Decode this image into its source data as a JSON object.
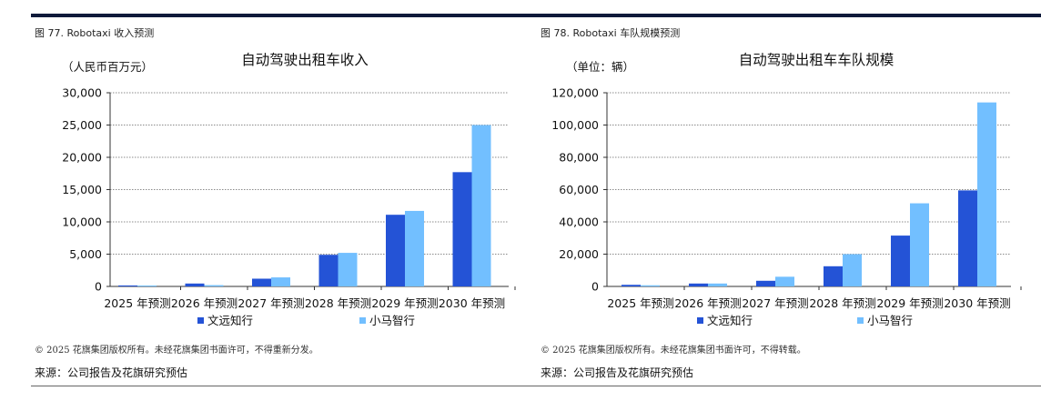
{
  "colors": {
    "series1": "#2453d6",
    "series2": "#72bfff",
    "rule": "#0f1a3a"
  },
  "panels": [
    {
      "caption": "图 77. Robotaxi 收入预测",
      "copyright": "© 2025 花旗集团版权所有。未经花旗集团书面许可，不得重新分发。",
      "source": "来源：公司报告及花旗研究预估"
    },
    {
      "caption": "图 78. Robotaxi 车队规模预测",
      "copyright": "© 2025 花旗集团版权所有。未经花旗集团书面许可，不得转载。",
      "source": "来源：公司报告及花旗研究预估"
    }
  ],
  "chart_data": [
    {
      "type": "bar",
      "title": "自动驾驶出租车收入",
      "ylabel": "（人民币百万元）",
      "xlabel": "",
      "categories": [
        "2025 年预测",
        "2026 年预测",
        "2027 年预测",
        "2028 年预测",
        "2029 年预测",
        "2030 年预测"
      ],
      "series": [
        {
          "name": "文远知行",
          "values": [
            150,
            450,
            1200,
            4900,
            11100,
            17700
          ]
        },
        {
          "name": "小马智行",
          "values": [
            60,
            200,
            1400,
            5200,
            11700,
            25000
          ]
        }
      ],
      "ylim": [
        0,
        30000
      ],
      "yticks": [
        0,
        5000,
        10000,
        15000,
        20000,
        25000,
        30000
      ],
      "ytick_labels": [
        "0",
        "5,000",
        "10,000",
        "15,000",
        "20,000",
        "25,000",
        "30,000"
      ],
      "grid": true,
      "legend": "bottom"
    },
    {
      "type": "bar",
      "title": "自动驾驶出租车车队规模",
      "ylabel": "（单位：辆）",
      "xlabel": "",
      "categories": [
        "2025 年预测",
        "2026 年预测",
        "2027 年预测",
        "2028 年预测",
        "2029 年预测",
        "2030 年预测"
      ],
      "series": [
        {
          "name": "文远知行",
          "values": [
            1000,
            1800,
            3500,
            12500,
            31500,
            59500
          ]
        },
        {
          "name": "小马智行",
          "values": [
            700,
            1800,
            6000,
            20000,
            51500,
            114000
          ]
        }
      ],
      "ylim": [
        0,
        120000
      ],
      "yticks": [
        0,
        20000,
        40000,
        60000,
        80000,
        100000,
        120000
      ],
      "ytick_labels": [
        "0",
        "20,000",
        "40,000",
        "60,000",
        "80,000",
        "100,000",
        "120,000"
      ],
      "grid": true,
      "legend": "bottom"
    }
  ]
}
